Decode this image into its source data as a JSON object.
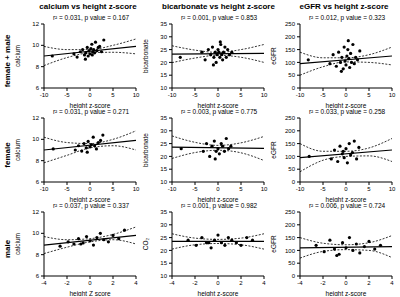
{
  "column_titles": [
    "calcium vs height z-score",
    "bicarbonate vs height z-score",
    "eGFR vs height z-score"
  ],
  "row_labels": [
    "female + male",
    "female",
    "male"
  ],
  "chart_data": [
    {
      "type": "scatter",
      "annotation": "r² = 0.031, p value = 0.167",
      "x_label": "height z-score",
      "y_label": "calcium",
      "xlim": [
        -10,
        10
      ],
      "xticks": [
        -10,
        -5,
        0,
        5,
        10
      ],
      "ylim": [
        6,
        12
      ],
      "yticks": [
        6,
        8,
        10,
        12
      ],
      "grid": false,
      "color": "#000000",
      "marker": "circle",
      "x": [
        -8.2,
        -3.5,
        -2.8,
        -2.1,
        -1.6,
        -1.2,
        -0.9,
        -0.6,
        -0.4,
        -0.2,
        0,
        0.2,
        0.4,
        0.6,
        0.8,
        1.0,
        1.2,
        1.5,
        1.8,
        2.1,
        2.5,
        3.0,
        -1.0,
        0.5
      ],
      "values": [
        9.0,
        9.2,
        8.9,
        9.4,
        9.6,
        9.1,
        9.3,
        9.8,
        9.0,
        9.5,
        9.2,
        9.7,
        10.1,
        9.4,
        9.6,
        9.3,
        10.3,
        9.5,
        9.8,
        9.9,
        9.4,
        10.5,
        8.7,
        9.1
      ],
      "fit": {
        "x": [
          -10,
          10
        ],
        "y": [
          9.0,
          9.9
        ]
      },
      "ci_upper": {
        "x": [
          -10,
          -5,
          0,
          5,
          10
        ],
        "y": [
          9.9,
          9.6,
          9.6,
          10.0,
          10.6
        ]
      },
      "ci_lower": {
        "x": [
          -10,
          -5,
          0,
          5,
          10
        ],
        "y": [
          8.1,
          8.85,
          9.3,
          9.35,
          9.2
        ]
      }
    },
    {
      "type": "scatter",
      "annotation": "r² = 0.001, p value = 0.853",
      "x_label": "height z-score",
      "y_label": "bicarbonate",
      "xlim": [
        -10,
        10
      ],
      "xticks": [
        -10,
        -5,
        0,
        5,
        10
      ],
      "ylim": [
        10,
        35
      ],
      "yticks": [
        10,
        15,
        20,
        25,
        30,
        35
      ],
      "grid": false,
      "color": "#000000",
      "marker": "circle",
      "x": [
        -8.2,
        -3.5,
        -2.8,
        -2.1,
        -1.6,
        -1.2,
        -0.9,
        -0.6,
        -0.4,
        -0.2,
        0,
        0.2,
        0.4,
        0.6,
        0.8,
        1.0,
        1.2,
        1.5,
        1.8,
        2.1,
        2.5,
        3.0,
        -1.0,
        0.5
      ],
      "values": [
        22,
        24,
        21,
        25,
        23,
        26,
        22,
        24,
        20,
        23,
        25,
        24,
        22,
        27,
        23,
        21,
        24,
        26,
        22,
        25,
        23,
        24,
        19,
        28
      ],
      "fit": {
        "x": [
          -10,
          10
        ],
        "y": [
          23.2,
          23.5
        ]
      },
      "ci_upper": {
        "x": [
          -10,
          -5,
          0,
          5,
          10
        ],
        "y": [
          26.5,
          24.8,
          23.9,
          25.0,
          27.0
        ]
      },
      "ci_lower": {
        "x": [
          -10,
          -5,
          0,
          5,
          10
        ],
        "y": [
          19.9,
          21.7,
          22.8,
          22.0,
          20.0
        ]
      }
    },
    {
      "type": "scatter",
      "annotation": "r² = 0.012, p value = 0.323",
      "x_label": "height z-score",
      "y_label": "eGFR",
      "xlim": [
        -10,
        10
      ],
      "xticks": [
        -10,
        -5,
        0,
        5,
        10
      ],
      "ylim": [
        0,
        250
      ],
      "yticks": [
        0,
        50,
        100,
        150,
        200,
        250
      ],
      "grid": false,
      "color": "#000000",
      "marker": "circle",
      "x": [
        -8.2,
        -3.5,
        -2.8,
        -2.1,
        -1.6,
        -1.2,
        -0.9,
        -0.6,
        -0.4,
        -0.2,
        0,
        0.2,
        0.4,
        0.6,
        0.8,
        1.0,
        1.2,
        1.5,
        1.8,
        2.1,
        2.5,
        3.0,
        -1.0,
        0.5
      ],
      "values": [
        110,
        95,
        130,
        85,
        140,
        100,
        120,
        75,
        160,
        105,
        90,
        125,
        150,
        115,
        80,
        135,
        100,
        170,
        95,
        120,
        110,
        145,
        65,
        185
      ],
      "fit": {
        "x": [
          -10,
          10
        ],
        "y": [
          95,
          125
        ]
      },
      "ci_upper": {
        "x": [
          -10,
          -5,
          0,
          5,
          10
        ],
        "y": [
          140,
          118,
          118,
          130,
          160
        ]
      },
      "ci_lower": {
        "x": [
          -10,
          -5,
          0,
          5,
          10
        ],
        "y": [
          50,
          83,
          102,
          100,
          90
        ]
      }
    },
    {
      "type": "scatter",
      "annotation": "r² = 0.031, p value = 0.271",
      "x_label": "height z-score",
      "y_label": "calcium",
      "xlim": [
        -10,
        10
      ],
      "xticks": [
        -10,
        -5,
        0,
        5,
        10
      ],
      "ylim": [
        6,
        12
      ],
      "yticks": [
        6,
        8,
        10,
        12
      ],
      "grid": false,
      "color": "#000000",
      "marker": "circle",
      "x": [
        -8.0,
        -3.2,
        -2.5,
        -1.8,
        -1.3,
        -0.8,
        -0.4,
        0,
        0.3,
        0.7,
        1.0,
        1.4,
        1.8,
        2.3,
        2.8,
        -0.6
      ],
      "values": [
        9.1,
        9.0,
        9.4,
        8.9,
        9.6,
        9.2,
        9.8,
        9.3,
        9.5,
        10.2,
        9.4,
        9.1,
        9.7,
        9.9,
        10.4,
        8.8
      ],
      "fit": {
        "x": [
          -10,
          10
        ],
        "y": [
          9.0,
          9.9
        ]
      },
      "ci_upper": {
        "x": [
          -10,
          -5,
          0,
          5,
          10
        ],
        "y": [
          10.2,
          9.7,
          9.6,
          10.0,
          10.8
        ]
      },
      "ci_lower": {
        "x": [
          -10,
          -5,
          0,
          5,
          10
        ],
        "y": [
          7.8,
          8.5,
          9.2,
          9.4,
          9.0
        ]
      }
    },
    {
      "type": "scatter",
      "annotation": "r² = 0.003, p value = 0.775",
      "x_label": "height z-score",
      "y_label": "bicarbonate",
      "xlim": [
        -10,
        10
      ],
      "xticks": [
        -10,
        -5,
        0,
        5,
        10
      ],
      "ylim": [
        10,
        35
      ],
      "yticks": [
        10,
        15,
        20,
        25,
        30,
        35
      ],
      "grid": false,
      "color": "#000000",
      "marker": "circle",
      "x": [
        -8.0,
        -3.2,
        -2.5,
        -1.8,
        -1.3,
        -0.8,
        -0.4,
        0,
        0.3,
        0.7,
        1.0,
        1.4,
        1.8,
        2.3,
        2.8,
        -0.6
      ],
      "values": [
        23,
        22,
        25,
        20,
        24,
        26,
        22,
        23,
        21,
        25,
        24,
        22,
        27,
        23,
        24,
        19
      ],
      "fit": {
        "x": [
          -10,
          10
        ],
        "y": [
          23.6,
          23.1
        ]
      },
      "ci_upper": {
        "x": [
          -10,
          -5,
          0,
          5,
          10
        ],
        "y": [
          28,
          25.5,
          24.3,
          25.3,
          27.8
        ]
      },
      "ci_lower": {
        "x": [
          -10,
          -5,
          0,
          5,
          10
        ],
        "y": [
          19.2,
          21.5,
          22.4,
          21.4,
          18.4
        ]
      }
    },
    {
      "type": "scatter",
      "annotation": "r² = 0.033, p value = 0.258",
      "x_label": "height z-score",
      "y_label": "eGFR",
      "xlim": [
        -10,
        10
      ],
      "xticks": [
        -10,
        -5,
        0,
        5,
        10
      ],
      "ylim": [
        0,
        250
      ],
      "yticks": [
        0,
        50,
        100,
        150,
        200,
        250
      ],
      "grid": false,
      "color": "#000000",
      "marker": "circle",
      "x": [
        -8.0,
        -3.2,
        -2.5,
        -1.8,
        -1.3,
        -0.8,
        -0.4,
        0,
        0.3,
        0.7,
        1.0,
        1.4,
        1.8,
        2.3,
        2.8,
        -0.6
      ],
      "values": [
        100,
        90,
        125,
        80,
        140,
        110,
        95,
        130,
        75,
        150,
        105,
        115,
        160,
        90,
        135,
        120
      ],
      "fit": {
        "x": [
          -10,
          10
        ],
        "y": [
          95,
          125
        ]
      },
      "ci_upper": {
        "x": [
          -10,
          -5,
          0,
          5,
          10
        ],
        "y": [
          150,
          120,
          120,
          133,
          170
        ]
      },
      "ci_lower": {
        "x": [
          -10,
          -5,
          0,
          5,
          10
        ],
        "y": [
          40,
          85,
          100,
          102,
          80
        ]
      }
    },
    {
      "type": "scatter",
      "annotation": "r² = 0.037, p value = 0.337",
      "x_label": "height Z score",
      "y_label": "calcium",
      "xlim": [
        -4,
        4
      ],
      "xticks": [
        -4,
        -2,
        0,
        2,
        4
      ],
      "ylim": [
        6,
        12
      ],
      "yticks": [
        6,
        8,
        10,
        12
      ],
      "grid": false,
      "color": "#000000",
      "marker": "circle",
      "x": [
        -2.6,
        -1.9,
        -1.4,
        -1.0,
        -0.6,
        -0.3,
        0,
        0.3,
        0.6,
        0.9,
        1.2,
        1.6,
        2.0,
        2.5,
        3.0,
        -0.8
      ],
      "values": [
        8.8,
        9.2,
        9.0,
        9.5,
        9.1,
        9.7,
        9.3,
        8.9,
        9.6,
        10.0,
        9.4,
        9.2,
        9.8,
        9.5,
        10.3,
        9.0
      ],
      "fit": {
        "x": [
          -4,
          4
        ],
        "y": [
          8.9,
          9.8
        ]
      },
      "ci_upper": {
        "x": [
          -4,
          -2,
          0,
          2,
          4
        ],
        "y": [
          9.7,
          9.4,
          9.5,
          9.9,
          10.6
        ]
      },
      "ci_lower": {
        "x": [
          -4,
          -2,
          0,
          2,
          4
        ],
        "y": [
          8.1,
          8.7,
          9.2,
          9.4,
          9.0
        ]
      }
    },
    {
      "type": "scatter",
      "annotation": "r² = 0.001, p value = 0.982",
      "x_label": "height z-score",
      "y_label": "CO₂",
      "xlim": [
        -4,
        4
      ],
      "xticks": [
        -4,
        -2,
        0,
        2,
        4
      ],
      "ylim": [
        10,
        35
      ],
      "yticks": [
        10,
        15,
        20,
        25,
        30,
        35
      ],
      "grid": false,
      "color": "#000000",
      "marker": "circle",
      "x": [
        -2.6,
        -1.9,
        -1.4,
        -1.0,
        -0.6,
        -0.3,
        0,
        0.3,
        0.6,
        0.9,
        1.2,
        1.6,
        2.0,
        2.5,
        3.0,
        -0.8
      ],
      "values": [
        24,
        22,
        25,
        23,
        21,
        24,
        26,
        23,
        22,
        25,
        24,
        23,
        22,
        25,
        24,
        23
      ],
      "fit": {
        "x": [
          -4,
          4
        ],
        "y": [
          23.5,
          23.5
        ]
      },
      "ci_upper": {
        "x": [
          -4,
          -2,
          0,
          2,
          4
        ],
        "y": [
          26.5,
          24.8,
          24.3,
          24.8,
          26.5
        ]
      },
      "ci_lower": {
        "x": [
          -4,
          -2,
          0,
          2,
          4
        ],
        "y": [
          20.5,
          22.2,
          22.7,
          22.2,
          20.5
        ]
      }
    },
    {
      "type": "scatter",
      "annotation": "r² = 0.006, p value = 0.724",
      "x_label": "height z-score",
      "y_label": "eGFR",
      "xlim": [
        -4,
        4
      ],
      "xticks": [
        -4,
        -2,
        0,
        2,
        4
      ],
      "ylim": [
        0,
        250
      ],
      "yticks": [
        0,
        50,
        100,
        150,
        200,
        250
      ],
      "grid": false,
      "color": "#000000",
      "marker": "circle",
      "x": [
        -2.6,
        -1.9,
        -1.4,
        -1.0,
        -0.6,
        -0.3,
        0,
        0.3,
        0.6,
        0.9,
        1.2,
        1.6,
        2.0,
        2.5,
        3.0,
        -0.8
      ],
      "values": [
        120,
        95,
        140,
        105,
        85,
        130,
        110,
        150,
        100,
        125,
        90,
        115,
        135,
        105,
        120,
        80
      ],
      "fit": {
        "x": [
          -4,
          4
        ],
        "y": [
          110,
          115
        ]
      },
      "ci_upper": {
        "x": [
          -4,
          -2,
          0,
          2,
          4
        ],
        "y": [
          150,
          128,
          122,
          130,
          158
        ]
      },
      "ci_lower": {
        "x": [
          -4,
          -2,
          0,
          2,
          4
        ],
        "y": [
          70,
          96,
          103,
          100,
          72
        ]
      }
    }
  ]
}
